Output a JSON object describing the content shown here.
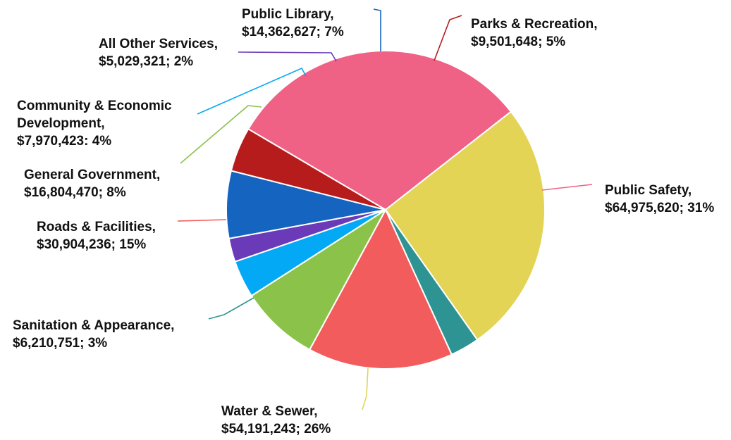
{
  "chart_data": {
    "type": "pie",
    "title": "",
    "slices": [
      {
        "name": "Public Safety",
        "value": 64975620,
        "percent": "31%",
        "color": "#F06186",
        "lines": [
          "Public Safety,",
          "$64,975,620; 31%"
        ]
      },
      {
        "name": "Water & Sewer",
        "value": 54191243,
        "percent": "26%",
        "color": "#E3D456",
        "lines": [
          "Water & Sewer,",
          "$54,191,243; 26%"
        ]
      },
      {
        "name": "Sanitation & Appearance",
        "value": 6210751,
        "percent": "3%",
        "color": "#2E9393",
        "lines": [
          "Sanitation & Appearance,",
          "$6,210,751; 3%"
        ]
      },
      {
        "name": "Roads & Facilities",
        "value": 30904236,
        "percent": "15%",
        "color": "#F25C5C",
        "lines": [
          "Roads & Facilities,",
          "$30,904,236; 15%"
        ]
      },
      {
        "name": "General Government",
        "value": 16804470,
        "percent": "8%",
        "color": "#8BC34A",
        "lines": [
          "General Government,",
          "$16,804,470; 8%"
        ]
      },
      {
        "name": "Community & Economic Development",
        "value": 7970423,
        "percent": "4%",
        "color": "#03A9F4",
        "lines": [
          "Community & Economic",
          "Development,",
          "$7,970,423: 4%"
        ]
      },
      {
        "name": "All Other Services",
        "value": 5029321,
        "percent": "2%",
        "color": "#6A3AB8",
        "lines": [
          "All Other Services,",
          "$5,029,321; 2%"
        ]
      },
      {
        "name": "Public Library",
        "value": 14362627,
        "percent": "7%",
        "color": "#1565C0",
        "lines": [
          "Public Library,",
          "$14,362,627; 7%"
        ]
      },
      {
        "name": "Parks & Recreation",
        "value": 9501648,
        "percent": "5%",
        "color": "#B71C1C",
        "lines": [
          "Parks & Recreation,",
          "$9,501,648; 5%"
        ]
      }
    ]
  }
}
